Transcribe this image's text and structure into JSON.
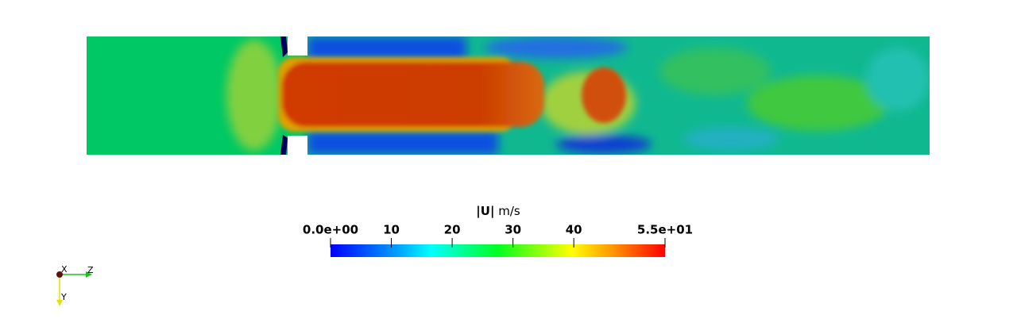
{
  "colorbar": {
    "title": "|U|",
    "unit": "m/s",
    "range": [
      0,
      55
    ],
    "ticks": [
      {
        "value": 0,
        "label": "0.0e+00"
      },
      10,
      20,
      30,
      40,
      {
        "value": 55,
        "label": "5.5e+01"
      }
    ]
  },
  "axes": {
    "x": "X",
    "y": "Y",
    "z": "Z"
  }
}
